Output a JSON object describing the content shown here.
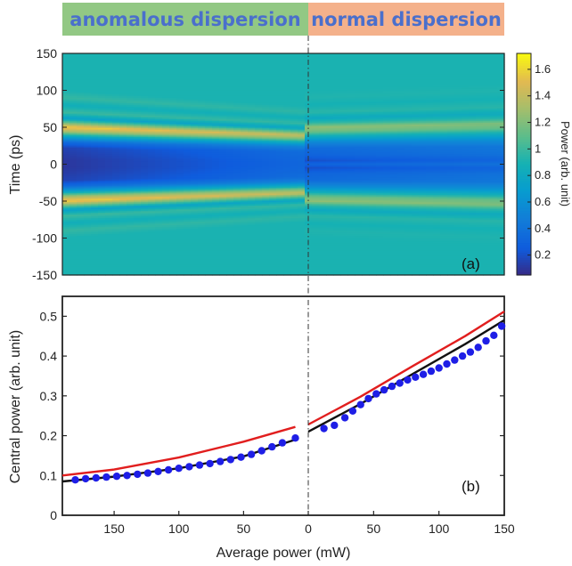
{
  "banner": {
    "left_label": "anomalous dispersion",
    "right_label": "normal dispersion",
    "left_color": "#92c884",
    "right_color": "#f4b18b",
    "text_color": "#4a6fcc"
  },
  "chart_data": [
    {
      "id": "a",
      "type": "heatmap",
      "panel_label": "(a)",
      "ylabel": "Time (ps)",
      "ylim": [
        -150,
        150
      ],
      "yticks": [
        "150",
        "100",
        "50",
        "0",
        "-50",
        "-100",
        "-150"
      ],
      "colorbar": {
        "label": "Power (arb. unit)",
        "range": [
          0.05,
          1.72
        ],
        "ticks": [
          "1.6",
          "1.4",
          "1.2",
          "1",
          "0.8",
          "0.6",
          "0.4",
          "0.2"
        ],
        "tick_values": [
          1.6,
          1.4,
          1.2,
          1.0,
          0.8,
          0.6,
          0.4,
          0.2
        ],
        "colormap": "parula"
      },
      "profile_time_ps": [
        -150,
        -100,
        -90,
        -80,
        -70,
        -62,
        -56,
        -50,
        -44,
        -38,
        -30,
        -22,
        -12,
        -5,
        0,
        5,
        12,
        22,
        30,
        38,
        44,
        50,
        56,
        62,
        70,
        80,
        90,
        100,
        150
      ],
      "profile_power_left": [
        0.9,
        0.9,
        0.98,
        0.85,
        1.0,
        0.72,
        1.15,
        1.6,
        1.3,
        0.8,
        0.35,
        0.15,
        0.12,
        0.1,
        0.1,
        0.1,
        0.12,
        0.15,
        0.35,
        0.8,
        1.3,
        1.6,
        1.15,
        0.72,
        1.0,
        0.85,
        0.98,
        0.9,
        0.9
      ],
      "profile_power_right": [
        0.9,
        0.9,
        0.92,
        0.88,
        0.95,
        0.8,
        0.95,
        1.25,
        1.15,
        0.85,
        0.55,
        0.35,
        0.3,
        0.2,
        0.3,
        0.2,
        0.3,
        0.35,
        0.55,
        0.85,
        1.15,
        1.25,
        0.95,
        0.8,
        0.95,
        0.88,
        0.92,
        0.9,
        0.9
      ]
    },
    {
      "id": "b",
      "type": "scatter",
      "panel_label": "(b)",
      "xlabel": "Average power (mW)",
      "ylabel": "Central power (arb. unit)",
      "ylim": [
        0,
        0.55
      ],
      "yticks": [
        "0.5",
        "0.4",
        "0.3",
        "0.2",
        "0.1",
        "0"
      ],
      "ytick_values": [
        0.5,
        0.4,
        0.3,
        0.2,
        0.1,
        0
      ],
      "xticks_left": [
        "150",
        "100",
        "50",
        "0"
      ],
      "xticks_right": [
        "50",
        "100",
        "150"
      ],
      "anomalous": {
        "xlim": [
          190,
          0
        ],
        "points_x": [
          180,
          172,
          164,
          156,
          148,
          140,
          132,
          124,
          116,
          108,
          100,
          92,
          84,
          76,
          68,
          60,
          52,
          44,
          36,
          28,
          20,
          10
        ],
        "points_y": [
          0.089,
          0.092,
          0.094,
          0.096,
          0.098,
          0.1,
          0.103,
          0.106,
          0.11,
          0.114,
          0.118,
          0.122,
          0.126,
          0.13,
          0.135,
          0.14,
          0.146,
          0.153,
          0.162,
          0.172,
          0.182,
          0.194
        ],
        "black_fit_x": [
          190,
          150,
          100,
          50,
          10
        ],
        "black_fit_y": [
          0.085,
          0.097,
          0.118,
          0.148,
          0.19
        ],
        "red_fit_x": [
          190,
          150,
          100,
          50,
          10
        ],
        "red_fit_y": [
          0.1,
          0.115,
          0.145,
          0.185,
          0.222
        ]
      },
      "normal": {
        "xlim": [
          0,
          150
        ],
        "points_x": [
          12,
          20,
          28,
          34,
          40,
          46,
          52,
          58,
          64,
          70,
          76,
          82,
          88,
          94,
          100,
          106,
          112,
          118,
          124,
          130,
          136,
          142,
          148
        ],
        "points_y": [
          0.218,
          0.226,
          0.245,
          0.262,
          0.278,
          0.293,
          0.305,
          0.315,
          0.324,
          0.332,
          0.34,
          0.347,
          0.354,
          0.362,
          0.37,
          0.38,
          0.39,
          0.4,
          0.41,
          0.422,
          0.438,
          0.452,
          0.475
        ],
        "black_fit_x": [
          0,
          40,
          80,
          120,
          150
        ],
        "black_fit_y": [
          0.21,
          0.28,
          0.355,
          0.43,
          0.49
        ],
        "red_fit_x": [
          0,
          40,
          80,
          120,
          150
        ],
        "red_fit_y": [
          0.228,
          0.298,
          0.375,
          0.45,
          0.512
        ]
      }
    }
  ]
}
